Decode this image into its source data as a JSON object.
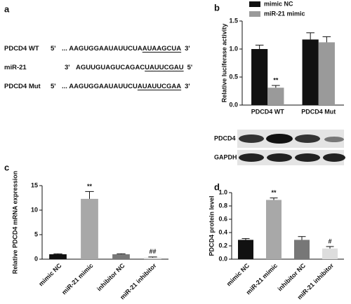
{
  "sequences": {
    "panel": "a",
    "rows": [
      {
        "name": "PDCD4 WT",
        "left": "5'",
        "pre": "... AAGUGGAAUAUUCUA",
        "core": "AUAAGCUA",
        "right": "3'"
      },
      {
        "name": "miR-21",
        "left": "3'",
        "pre": "AGUUGUAGUCAGAC",
        "core": "UAUUCGAU",
        "right": "5'"
      },
      {
        "name": "PDCD4 Mut",
        "left": "5'",
        "pre": "... AAGUGGAAUAUUCU",
        "core": "AUAUUCGAA",
        "right": "3'"
      }
    ]
  },
  "blot": {
    "labels": [
      "PDCD4",
      "GAPDH"
    ]
  },
  "chart_data": [
    {
      "type": "bar",
      "panel": "b",
      "y_label": "Relative luciferase activity",
      "categories": [
        "PDCD4 WT",
        "PDCD4 Mut"
      ],
      "series": [
        {
          "name": "mimic NC",
          "color": "#111111",
          "values": [
            1.0,
            1.17
          ],
          "errors": [
            0.07,
            0.12
          ],
          "annotations": [
            null,
            null
          ]
        },
        {
          "name": "miR-21 mimic",
          "color": "#9a9a9a",
          "values": [
            0.31,
            1.12
          ],
          "errors": [
            0.04,
            0.1
          ],
          "annotations": [
            "**",
            null
          ]
        }
      ],
      "ylim": [
        0,
        1.5
      ],
      "yticks": [
        {
          "value": 0,
          "label": "0.0"
        },
        0.5,
        {
          "value": 1,
          "label": "1.0"
        },
        1.5
      ]
    },
    {
      "type": "bar",
      "panel": "c",
      "y_label": "Relative PDCD4 mRNA expression",
      "categories": [
        "mimic NC",
        "miR-21 mimic",
        "inhibitor NC",
        "miR-21 inhibitor"
      ],
      "values": [
        1.0,
        12.3,
        1.0,
        0.3
      ],
      "errors": [
        0.1,
        1.5,
        0.1,
        0.15
      ],
      "colors": [
        "#111111",
        "#a8a8a8",
        "#777777",
        "#dddddd"
      ],
      "annotations": [
        null,
        "**",
        null,
        "##"
      ],
      "ylim": [
        0,
        15
      ],
      "yticks": [
        0,
        5,
        10,
        15
      ]
    },
    {
      "type": "bar",
      "panel": "d",
      "y_label": "PDCD4 protein level",
      "categories": [
        "mimic NC",
        "miR-21 mimic",
        "inhibitor NC",
        "miR-21 inhibitor"
      ],
      "values": [
        0.29,
        0.89,
        0.29,
        0.16
      ],
      "errors": [
        0.02,
        0.03,
        0.05,
        0.03
      ],
      "colors": [
        "#111111",
        "#a8a8a8",
        "#777777",
        "#dddddd"
      ],
      "annotations": [
        null,
        "**",
        null,
        "#"
      ],
      "ylim": [
        0,
        1.0
      ],
      "yticks": [
        {
          "value": 0,
          "label": "0.0"
        },
        0.2,
        0.4,
        0.6,
        0.8,
        {
          "value": 1.0,
          "label": "1.0"
        }
      ]
    }
  ]
}
